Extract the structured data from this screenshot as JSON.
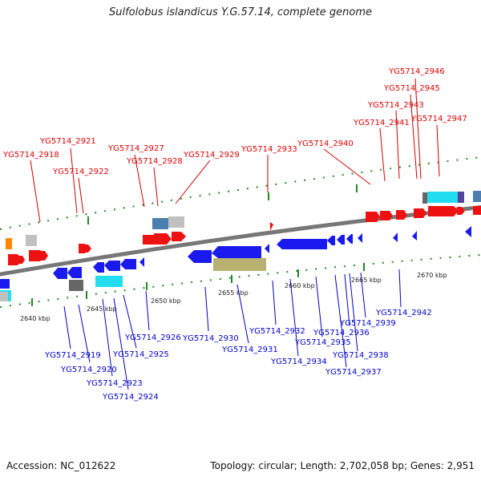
{
  "title": "Sulfolobus islandicus Y.G.57.14, complete genome",
  "footer": {
    "accession": "Accession: NC_012622",
    "summary": "Topology: circular; Length: 2,702,058 bp; Genes: 2,951"
  },
  "colors": {
    "forward_gene": "#ee1111",
    "reverse_gene": "#1a1aee",
    "top_label": "#dd0000",
    "bottom_label": "#0000cc",
    "backbone": "#777777",
    "ticks": "#228822",
    "cyan_feature": "#22ddee",
    "olive_feature": "#b8b070",
    "steel_feature": "#4a7fb0",
    "gray_feature": "#c0c0c0",
    "dark_gray_feature": "#666666",
    "orange_feature": "#ff8800",
    "purple_feature": "#554499"
  },
  "scale_labels": [
    "2640 kbp",
    "2645 kbp",
    "2650 kbp",
    "2655 kbp",
    "2660 kbp",
    "2665 kbp",
    "2670 kbp"
  ],
  "top_genes": [
    "YG5714_2918",
    "YG5714_2921",
    "YG5714_2922",
    "YG5714_2927",
    "YG5714_2928",
    "YG5714_2929",
    "YG5714_2933",
    "YG5714_2940",
    "YG5714_2941",
    "YG5714_2943",
    "YG5714_2945",
    "YG5714_2946",
    "YG5714_2947"
  ],
  "bottom_genes": [
    "YG5714_2919",
    "YG5714_2920",
    "YG5714_2923",
    "YG5714_2924",
    "YG5714_2925",
    "YG5714_2926",
    "YG5714_2930",
    "YG5714_2931",
    "YG5714_2932",
    "YG5714_2934",
    "YG5714_2935",
    "YG5714_2936",
    "YG5714_2937",
    "YG5714_2938",
    "YG5714_2939",
    "YG5714_2942"
  ]
}
